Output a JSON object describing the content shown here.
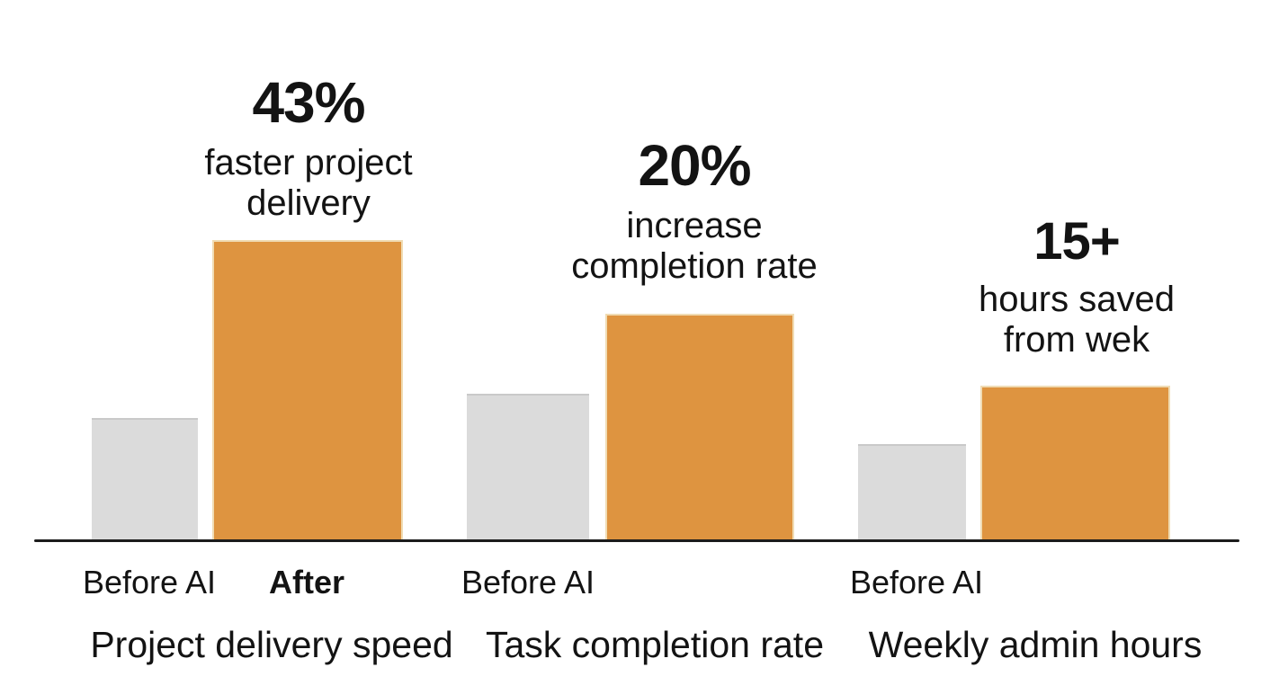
{
  "chart_data": {
    "type": "bar",
    "title": "",
    "categories": [
      "Project delivery speed",
      "Task completion rate",
      "Weekly admin hours"
    ],
    "series": [
      {
        "name": "Before AI",
        "values": [
          137,
          164,
          108
        ]
      },
      {
        "name": "After",
        "values": [
          335,
          253,
          173
        ]
      }
    ],
    "value_note": "no numeric axis shown; values are relative bar heights in px",
    "tick_labels": [
      {
        "text": "Before AI",
        "bold": false
      },
      {
        "text": "After",
        "bold": true
      },
      {
        "text": "Before AI",
        "bold": false
      },
      {
        "text": "Before AI",
        "bold": false
      }
    ],
    "annotations": [
      {
        "value": "43%",
        "label": "faster project\ndelivery"
      },
      {
        "value": "20%",
        "label": "increase\ncompletion rate"
      },
      {
        "value": "15+",
        "label": "hours saved\nfrom wek"
      }
    ],
    "legend": "none",
    "grid": false,
    "colors": {
      "before": "#dbdbdb",
      "after": "#de9440",
      "axis": "#1c1c1c",
      "text": "#131313",
      "background": "#ffffff"
    }
  }
}
